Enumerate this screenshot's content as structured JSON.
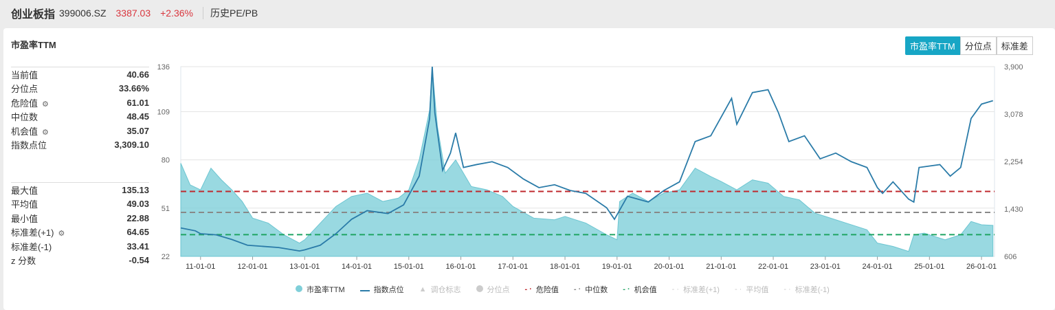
{
  "header": {
    "name": "创业板指",
    "code": "399006.SZ",
    "price": "3387.03",
    "change": "+2.36%",
    "link": "历史PE/PB"
  },
  "panel_title": "市盈率TTM",
  "buttons": [
    "市盈率TTM",
    "分位点",
    "标准差"
  ],
  "stats1": [
    {
      "label": "当前值",
      "value": "40.66"
    },
    {
      "label": "分位点",
      "value": "33.66%"
    },
    {
      "label": "危险值",
      "value": "61.01",
      "gear": true
    },
    {
      "label": "中位数",
      "value": "48.45"
    },
    {
      "label": "机会值",
      "value": "35.07",
      "gear": true
    },
    {
      "label": "指数点位",
      "value": "3,309.10"
    }
  ],
  "stats2": [
    {
      "label": "最大值",
      "value": "135.13"
    },
    {
      "label": "平均值",
      "value": "49.03"
    },
    {
      "label": "最小值",
      "value": "22.88"
    },
    {
      "label": "标准差(+1)",
      "value": "64.65",
      "gear": true
    },
    {
      "label": "标准差(-1)",
      "value": "33.41"
    },
    {
      "label": "z 分数",
      "value": "-0.54"
    }
  ],
  "colors": {
    "pe": "#7fcfd9",
    "index": "#2a7ba8",
    "danger": "#c0282d",
    "median": "#888888",
    "chance": "#1fa463",
    "accent": "#17a6c5"
  },
  "chart_data": {
    "type": "area+line",
    "left_axis": {
      "ticks": [
        "22",
        "51",
        "80",
        "109",
        "136"
      ],
      "range": [
        22,
        136
      ]
    },
    "right_axis": {
      "ticks": [
        "606",
        "1,430",
        "2,254",
        "3,078",
        "3,900"
      ],
      "range": [
        606,
        3900
      ]
    },
    "x_ticks": [
      "11-01-01",
      "12-01-01",
      "13-01-01",
      "14-01-01",
      "15-01-01",
      "16-01-01",
      "17-01-01",
      "18-01-01",
      "19-01-01",
      "20-01-01",
      "21-01-01",
      "22-01-01",
      "23-01-01",
      "24-01-01",
      "25-01-01",
      "26-01-01"
    ],
    "x_range": [
      2010.62,
      2026.25
    ],
    "pe_series": [
      [
        2010.62,
        78
      ],
      [
        2010.8,
        65
      ],
      [
        2011.0,
        62
      ],
      [
        2011.2,
        75
      ],
      [
        2011.4,
        68
      ],
      [
        2011.6,
        62
      ],
      [
        2011.8,
        55
      ],
      [
        2012.0,
        45
      ],
      [
        2012.3,
        42
      ],
      [
        2012.6,
        35
      ],
      [
        2012.9,
        30
      ],
      [
        2013.0,
        32
      ],
      [
        2013.3,
        42
      ],
      [
        2013.6,
        52
      ],
      [
        2013.9,
        58
      ],
      [
        2014.2,
        60
      ],
      [
        2014.5,
        55
      ],
      [
        2014.8,
        57
      ],
      [
        2015.0,
        62
      ],
      [
        2015.2,
        80
      ],
      [
        2015.4,
        110
      ],
      [
        2015.45,
        135
      ],
      [
        2015.55,
        100
      ],
      [
        2015.7,
        72
      ],
      [
        2015.9,
        80
      ],
      [
        2016.2,
        64
      ],
      [
        2016.5,
        62
      ],
      [
        2016.8,
        58
      ],
      [
        2017.0,
        52
      ],
      [
        2017.4,
        45
      ],
      [
        2017.8,
        44
      ],
      [
        2018.0,
        46
      ],
      [
        2018.4,
        42
      ],
      [
        2018.8,
        35
      ],
      [
        2019.0,
        32
      ],
      [
        2019.05,
        55
      ],
      [
        2019.3,
        60
      ],
      [
        2019.6,
        55
      ],
      [
        2019.9,
        60
      ],
      [
        2020.2,
        62
      ],
      [
        2020.5,
        75
      ],
      [
        2020.8,
        70
      ],
      [
        2021.0,
        67
      ],
      [
        2021.3,
        62
      ],
      [
        2021.6,
        68
      ],
      [
        2021.9,
        66
      ],
      [
        2022.2,
        58
      ],
      [
        2022.5,
        56
      ],
      [
        2022.8,
        48
      ],
      [
        2023.0,
        46
      ],
      [
        2023.4,
        42
      ],
      [
        2023.8,
        38
      ],
      [
        2024.0,
        30
      ],
      [
        2024.3,
        28
      ],
      [
        2024.6,
        25
      ],
      [
        2024.7,
        35
      ],
      [
        2024.9,
        36
      ],
      [
        2025.3,
        32
      ],
      [
        2025.6,
        35
      ],
      [
        2025.8,
        43
      ],
      [
        2026.0,
        41
      ],
      [
        2026.22,
        40.66
      ]
    ],
    "index_series": [
      [
        2010.62,
        1100
      ],
      [
        2010.9,
        1050
      ],
      [
        2011.0,
        1000
      ],
      [
        2011.3,
        980
      ],
      [
        2011.6,
        900
      ],
      [
        2011.9,
        800
      ],
      [
        2012.2,
        780
      ],
      [
        2012.5,
        760
      ],
      [
        2012.9,
        700
      ],
      [
        2013.0,
        720
      ],
      [
        2013.3,
        800
      ],
      [
        2013.6,
        1000
      ],
      [
        2013.9,
        1250
      ],
      [
        2014.2,
        1400
      ],
      [
        2014.6,
        1350
      ],
      [
        2014.9,
        1500
      ],
      [
        2015.2,
        2000
      ],
      [
        2015.4,
        3000
      ],
      [
        2015.45,
        3900
      ],
      [
        2015.5,
        3100
      ],
      [
        2015.65,
        2100
      ],
      [
        2015.8,
        2400
      ],
      [
        2015.9,
        2750
      ],
      [
        2016.05,
        2150
      ],
      [
        2016.3,
        2200
      ],
      [
        2016.6,
        2250
      ],
      [
        2016.9,
        2150
      ],
      [
        2017.2,
        1950
      ],
      [
        2017.5,
        1800
      ],
      [
        2017.8,
        1850
      ],
      [
        2018.1,
        1750
      ],
      [
        2018.4,
        1700
      ],
      [
        2018.8,
        1450
      ],
      [
        2018.95,
        1250
      ],
      [
        2019.2,
        1650
      ],
      [
        2019.6,
        1550
      ],
      [
        2019.9,
        1750
      ],
      [
        2020.2,
        1900
      ],
      [
        2020.5,
        2600
      ],
      [
        2020.8,
        2700
      ],
      [
        2021.2,
        3350
      ],
      [
        2021.3,
        2900
      ],
      [
        2021.6,
        3450
      ],
      [
        2021.9,
        3500
      ],
      [
        2022.1,
        3100
      ],
      [
        2022.3,
        2600
      ],
      [
        2022.6,
        2700
      ],
      [
        2022.9,
        2300
      ],
      [
        2023.2,
        2400
      ],
      [
        2023.5,
        2250
      ],
      [
        2023.8,
        2150
      ],
      [
        2024.0,
        1800
      ],
      [
        2024.1,
        1700
      ],
      [
        2024.3,
        1900
      ],
      [
        2024.6,
        1600
      ],
      [
        2024.7,
        1550
      ],
      [
        2024.8,
        2150
      ],
      [
        2025.2,
        2200
      ],
      [
        2025.4,
        2000
      ],
      [
        2025.6,
        2150
      ],
      [
        2025.8,
        3000
      ],
      [
        2026.0,
        3250
      ],
      [
        2026.22,
        3309.1
      ]
    ],
    "danger": 61.01,
    "median": 48.45,
    "chance": 35.07,
    "legend": [
      {
        "label": "市盈率TTM",
        "on": true
      },
      {
        "label": "指数点位",
        "on": true
      },
      {
        "label": "调仓标志",
        "on": false
      },
      {
        "label": "分位点",
        "on": false
      },
      {
        "label": "危险值",
        "on": true
      },
      {
        "label": "中位数",
        "on": true
      },
      {
        "label": "机会值",
        "on": true
      },
      {
        "label": "标准差(+1)",
        "on": false
      },
      {
        "label": "平均值",
        "on": false
      },
      {
        "label": "标准差(-1)",
        "on": false
      }
    ]
  }
}
